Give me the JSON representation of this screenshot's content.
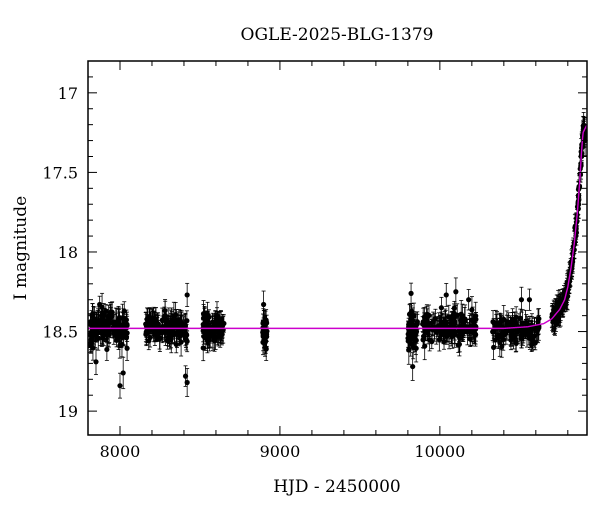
{
  "chart_data": {
    "type": "scatter",
    "title": "OGLE-2025-BLG-1379",
    "xlabel": "HJD - 2450000",
    "ylabel": "I magnitude",
    "xlim": [
      7800,
      10920
    ],
    "ylim": [
      19.15,
      16.8
    ],
    "y_inverted": true,
    "x_ticks": [
      8000,
      9000,
      10000
    ],
    "y_ticks": [
      17,
      17.5,
      18,
      18.5,
      19
    ],
    "x_tick_labels": [
      "8000",
      "9000",
      "10000"
    ],
    "y_tick_labels": [
      "17",
      "17.5",
      "18",
      "18.5",
      "19"
    ],
    "grid": false,
    "colors": {
      "points": "#000000",
      "model": "#cc00cc",
      "axes": "#000000"
    },
    "model": {
      "name": "",
      "baseline_mag": 18.48,
      "points": [
        [
          7800,
          18.48
        ],
        [
          10400,
          18.48
        ],
        [
          10550,
          18.47
        ],
        [
          10650,
          18.45
        ],
        [
          10700,
          18.42
        ],
        [
          10750,
          18.36
        ],
        [
          10780,
          18.3
        ],
        [
          10800,
          18.22
        ],
        [
          10820,
          18.1
        ],
        [
          10840,
          17.95
        ],
        [
          10860,
          17.75
        ],
        [
          10875,
          17.55
        ],
        [
          10885,
          17.38
        ],
        [
          10895,
          17.25
        ],
        [
          10920,
          17.2
        ]
      ]
    },
    "observing_seasons": [
      {
        "x_start": 7810,
        "x_end": 8045,
        "mag_center": 18.47,
        "mag_spread": 0.08,
        "n": 140
      },
      {
        "x_start": 8160,
        "x_end": 8420,
        "mag_center": 18.48,
        "mag_spread": 0.07,
        "n": 140
      },
      {
        "x_start": 8520,
        "x_end": 8650,
        "mag_center": 18.48,
        "mag_spread": 0.07,
        "n": 90
      },
      {
        "x_start": 8890,
        "x_end": 8920,
        "mag_center": 18.5,
        "mag_spread": 0.08,
        "n": 30
      },
      {
        "x_start": 9800,
        "x_end": 9860,
        "mag_center": 18.5,
        "mag_spread": 0.09,
        "n": 50
      },
      {
        "x_start": 9890,
        "x_end": 10230,
        "mag_center": 18.48,
        "mag_spread": 0.07,
        "n": 140
      },
      {
        "x_start": 10330,
        "x_end": 10620,
        "mag_center": 18.49,
        "mag_spread": 0.07,
        "n": 110
      },
      {
        "x_start": 10700,
        "x_end": 10905,
        "mag_center": null,
        "mag_spread": 0.04,
        "n": 180
      }
    ],
    "notable_points": [
      [
        8420,
        18.27
      ],
      [
        8410,
        18.78
      ],
      [
        8420,
        18.82
      ],
      [
        8000,
        18.84
      ],
      [
        9820,
        18.26
      ],
      [
        9830,
        18.72
      ],
      [
        10040,
        18.27
      ],
      [
        10100,
        18.25
      ],
      [
        10180,
        18.3
      ],
      [
        10510,
        18.3
      ],
      [
        10560,
        18.3
      ],
      [
        8898,
        18.33
      ],
      [
        8020,
        18.76
      ],
      [
        7850,
        18.69
      ],
      [
        10905,
        17.24
      ],
      [
        10908,
        17.3
      ]
    ]
  }
}
